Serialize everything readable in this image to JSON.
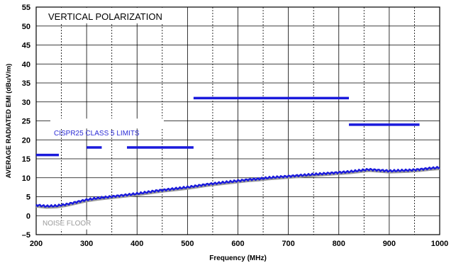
{
  "chart_data": {
    "type": "line",
    "title": "",
    "xlabel": "Frequency (MHz)",
    "ylabel": "AVERAGE RADIATED EMI (dBuV/m)",
    "xlim": [
      200,
      1000
    ],
    "ylim": [
      -5,
      55
    ],
    "xticks": [
      200,
      300,
      400,
      500,
      600,
      700,
      800,
      900,
      1000
    ],
    "yticks": [
      -5,
      0,
      5,
      10,
      15,
      20,
      25,
      30,
      35,
      40,
      45,
      50,
      55
    ],
    "grid": true,
    "annotations": {
      "polarization": "VERTICAL POLARIZATION",
      "limits_label": "CISPR25 CLASS 5 LIMITS",
      "noise_floor_label": "NOISE FLOOR"
    },
    "colors": {
      "emi": "#1a1adc",
      "limits": "#1a1adc",
      "noise_floor": "#9a9a9a",
      "limits_label": "#2b2bd6",
      "noise_floor_label": "#9a9a9a"
    },
    "limits": [
      {
        "x_start": 200,
        "x_end": 245,
        "y": 16
      },
      {
        "x_start": 300,
        "x_end": 330,
        "y": 18
      },
      {
        "x_start": 380,
        "x_end": 512,
        "y": 18
      },
      {
        "x_start": 512,
        "x_end": 820,
        "y": 31
      },
      {
        "x_start": 820,
        "x_end": 960,
        "y": 24
      }
    ],
    "series": [
      {
        "x": [
          200,
          220,
          240,
          260,
          280,
          300,
          320,
          340,
          360,
          380,
          400,
          420,
          440,
          460,
          480,
          500,
          520,
          540,
          560,
          580,
          600,
          620,
          640,
          660,
          680,
          700,
          720,
          740,
          760,
          780,
          800,
          820,
          840,
          860,
          880,
          900,
          920,
          940,
          960,
          980,
          1000
        ],
        "y": [
          2.8,
          2.5,
          2.6,
          3.0,
          3.6,
          4.2,
          4.6,
          4.9,
          5.2,
          5.5,
          5.8,
          6.2,
          6.6,
          6.9,
          7.2,
          7.5,
          7.9,
          8.3,
          8.6,
          8.9,
          9.2,
          9.5,
          9.7,
          10.0,
          10.2,
          10.4,
          10.6,
          10.8,
          11.0,
          11.2,
          11.4,
          11.6,
          11.9,
          12.2,
          12.0,
          11.8,
          11.9,
          12.0,
          12.2,
          12.5,
          12.7
        ]
      }
    ]
  }
}
